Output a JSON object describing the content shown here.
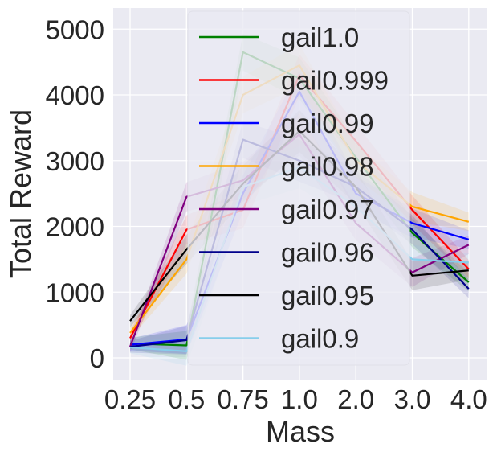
{
  "chart_data": {
    "type": "line",
    "title": "",
    "xlabel": "Mass",
    "ylabel": "Total Reward",
    "categories": [
      "0.25",
      "0.5",
      "0.75",
      "1.0",
      "2.0",
      "3.0",
      "4.0"
    ],
    "yticks": [
      0,
      1000,
      2000,
      3000,
      4000,
      5000
    ],
    "ylim": [
      -300,
      5350
    ],
    "grid": true,
    "legend_position": "upper-center",
    "series": [
      {
        "name": "gail1.0",
        "color": "#008000",
        "values": [
          220,
          190,
          4650,
          4250,
          3050,
          1900,
          1150
        ]
      },
      {
        "name": "gail0.999",
        "color": "#ff0000",
        "values": [
          300,
          1950,
          2250,
          4300,
          3300,
          2250,
          1350
        ]
      },
      {
        "name": "gail0.99",
        "color": "#0000ff",
        "values": [
          200,
          280,
          2500,
          4050,
          2500,
          2050,
          1800
        ]
      },
      {
        "name": "gail0.98",
        "color": "#ffa500",
        "values": [
          380,
          1500,
          4000,
          4450,
          3000,
          2300,
          2070
        ]
      },
      {
        "name": "gail0.97",
        "color": "#800080",
        "values": [
          170,
          2450,
          2700,
          3400,
          2050,
          1300,
          1720
        ]
      },
      {
        "name": "gail0.96",
        "color": "#00008b",
        "values": [
          170,
          270,
          3320,
          3000,
          2600,
          1950,
          1050
        ]
      },
      {
        "name": "gail0.95",
        "color": "#000000",
        "values": [
          560,
          1650,
          2650,
          3450,
          2600,
          1250,
          1330
        ]
      },
      {
        "name": "gail0.9",
        "color": "#87ceeb",
        "values": [
          160,
          100,
          2600,
          2900,
          2300,
          1500,
          1450
        ]
      }
    ]
  }
}
